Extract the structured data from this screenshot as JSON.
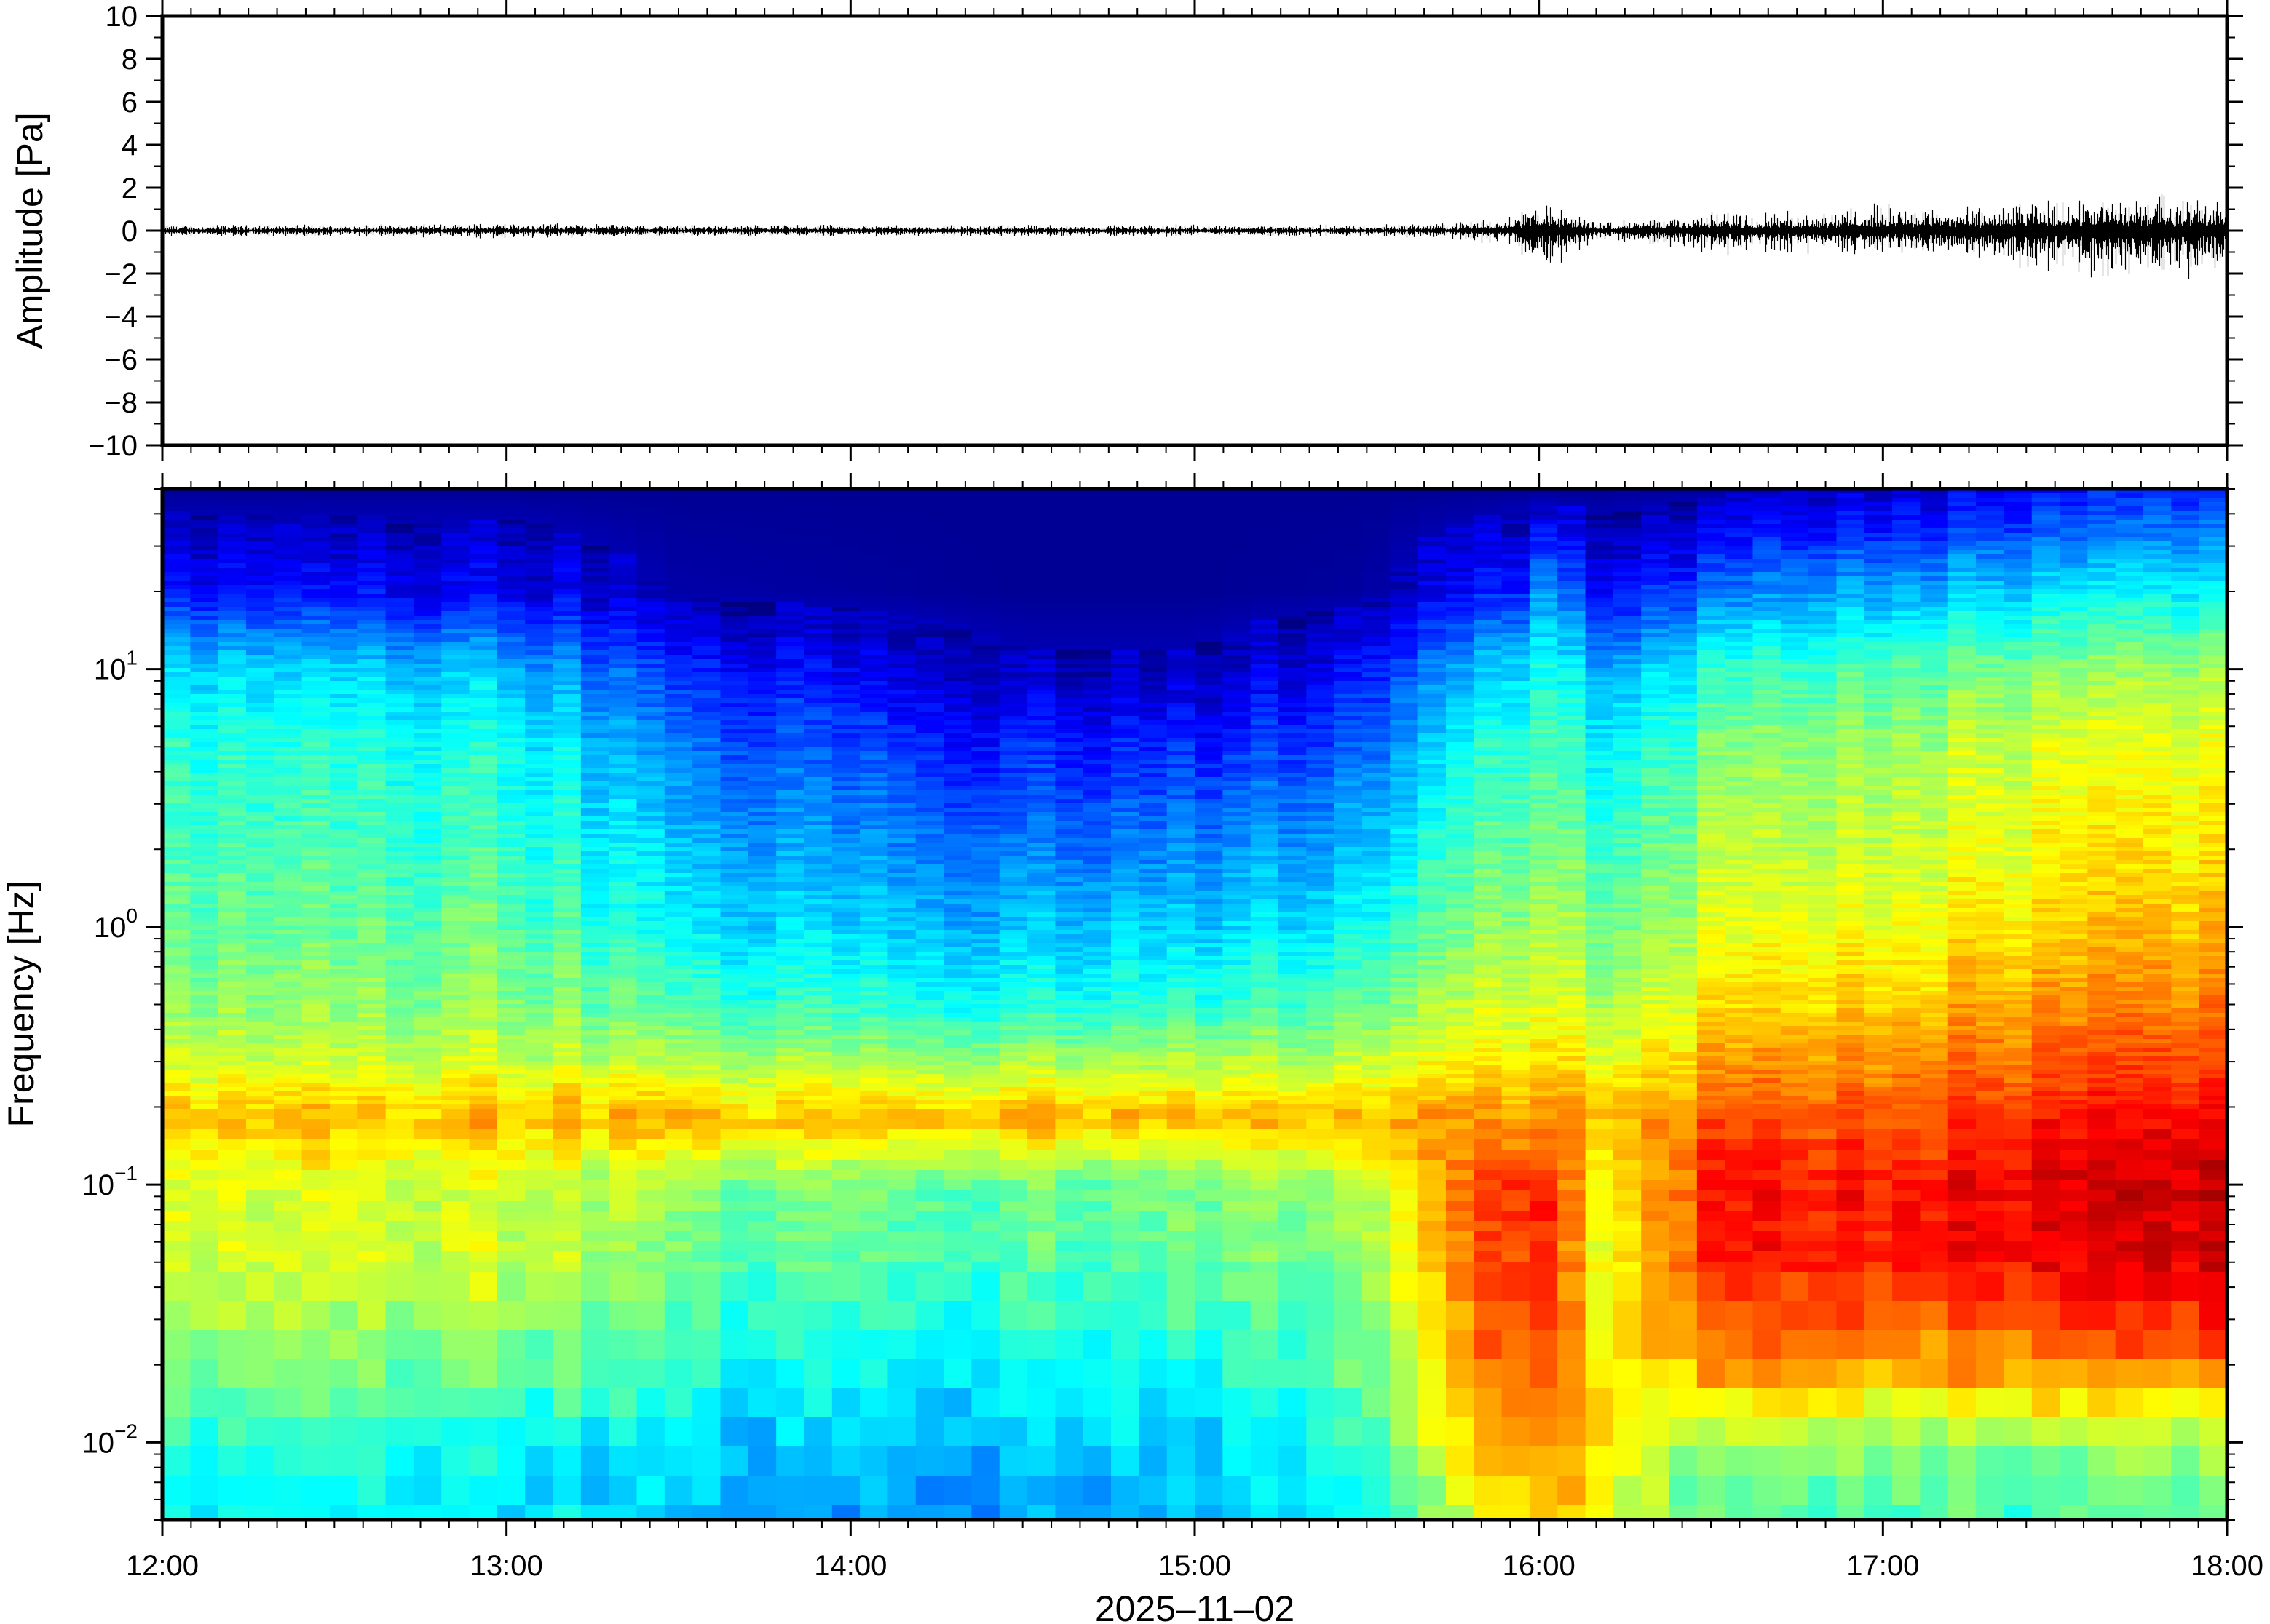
{
  "chart_data": [
    {
      "type": "line",
      "title": "",
      "ylabel": "Amplitude [Pa]",
      "xlabel": "",
      "ylim": [
        -10,
        10
      ],
      "y_ticks": [
        10,
        8,
        6,
        4,
        2,
        0,
        -2,
        -4,
        -6,
        -8,
        -10
      ],
      "y_tick_labels": [
        "10",
        "8",
        "6",
        "4",
        "2",
        "0",
        "−2",
        "−4",
        "−6",
        "−8",
        "−10"
      ],
      "x_ticks": [
        "12:00",
        "13:00",
        "14:00",
        "15:00",
        "16:00",
        "17:00",
        "18:00"
      ],
      "xlim": [
        "12:00",
        "18:00"
      ],
      "grid": false,
      "line_color": "#000000",
      "series": [
        {
          "x": [
            "12:00",
            "12:30",
            "13:00",
            "13:30",
            "14:00",
            "14:30",
            "15:00",
            "15:30",
            "15:45",
            "15:55",
            "16:00",
            "16:10",
            "16:20",
            "16:30",
            "16:45",
            "17:00",
            "17:15",
            "17:30",
            "17:45",
            "18:00"
          ],
          "envelope_max": [
            0.3,
            0.3,
            0.4,
            0.3,
            0.3,
            0.3,
            0.3,
            0.3,
            0.4,
            0.8,
            1.6,
            0.5,
            0.6,
            1.0,
            1.0,
            1.4,
            1.2,
            1.6,
            1.8,
            1.8
          ],
          "envelope_min": [
            -0.3,
            -0.3,
            -0.4,
            -0.3,
            -0.3,
            -0.3,
            -0.3,
            -0.3,
            -0.4,
            -0.8,
            -2.3,
            -0.5,
            -0.7,
            -1.2,
            -1.2,
            -1.4,
            -1.5,
            -2.2,
            -2.5,
            -2.5
          ]
        }
      ]
    },
    {
      "type": "heatmap",
      "title": "",
      "ylabel": "Frequency [Hz]",
      "xlabel": "2025–11–02",
      "y_scale": "log",
      "ylim": [
        0.005,
        50
      ],
      "y_ticks": [
        10,
        1,
        0.1,
        0.01
      ],
      "y_tick_labels": [
        {
          "base": "10",
          "exp": "1"
        },
        {
          "base": "10",
          "exp": "0"
        },
        {
          "base": "10",
          "exp": "−1"
        },
        {
          "base": "10",
          "exp": "−2"
        }
      ],
      "x_ticks": [
        "12:00",
        "13:00",
        "14:00",
        "15:00",
        "16:00",
        "17:00",
        "18:00"
      ],
      "xlim": [
        "12:00",
        "18:00"
      ],
      "colormap": "jet",
      "grid": false,
      "frequency_profile_hz": [
        50,
        20,
        10,
        5,
        2,
        1,
        0.5,
        0.3,
        0.18,
        0.1,
        0.05,
        0.02,
        0.01,
        0.005
      ],
      "power_normalized": [
        {
          "time": "12:00",
          "values": [
            0.02,
            0.15,
            0.35,
            0.42,
            0.45,
            0.48,
            0.52,
            0.58,
            0.7,
            0.6,
            0.58,
            0.52,
            0.42,
            0.4
          ]
        },
        {
          "time": "13:00",
          "values": [
            0.02,
            0.12,
            0.32,
            0.4,
            0.44,
            0.48,
            0.52,
            0.58,
            0.7,
            0.58,
            0.58,
            0.5,
            0.38,
            0.36
          ]
        },
        {
          "time": "13:30",
          "values": [
            0.02,
            0.04,
            0.16,
            0.24,
            0.32,
            0.36,
            0.45,
            0.55,
            0.7,
            0.52,
            0.48,
            0.42,
            0.35,
            0.32
          ]
        },
        {
          "time": "14:00",
          "values": [
            0.02,
            0.03,
            0.12,
            0.2,
            0.28,
            0.34,
            0.42,
            0.55,
            0.7,
            0.5,
            0.46,
            0.4,
            0.32,
            0.28
          ]
        },
        {
          "time": "14:30",
          "values": [
            0.02,
            0.02,
            0.06,
            0.15,
            0.24,
            0.31,
            0.4,
            0.54,
            0.7,
            0.48,
            0.45,
            0.38,
            0.32,
            0.28
          ]
        },
        {
          "time": "15:00",
          "values": [
            0.02,
            0.02,
            0.06,
            0.16,
            0.26,
            0.33,
            0.42,
            0.55,
            0.7,
            0.5,
            0.47,
            0.4,
            0.34,
            0.3
          ]
        },
        {
          "time": "15:30",
          "values": [
            0.02,
            0.03,
            0.14,
            0.22,
            0.32,
            0.38,
            0.47,
            0.57,
            0.7,
            0.55,
            0.52,
            0.48,
            0.42,
            0.38
          ]
        },
        {
          "time": "15:55",
          "values": [
            0.02,
            0.15,
            0.34,
            0.42,
            0.48,
            0.52,
            0.58,
            0.64,
            0.72,
            0.84,
            0.82,
            0.8,
            0.72,
            0.62
          ]
        },
        {
          "time": "16:00",
          "values": [
            0.02,
            0.28,
            0.4,
            0.45,
            0.5,
            0.55,
            0.6,
            0.66,
            0.74,
            0.86,
            0.84,
            0.82,
            0.75,
            0.65
          ]
        },
        {
          "time": "16:10",
          "values": [
            0.02,
            0.14,
            0.3,
            0.38,
            0.44,
            0.5,
            0.55,
            0.62,
            0.7,
            0.62,
            0.62,
            0.66,
            0.68,
            0.62
          ]
        },
        {
          "time": "16:30",
          "values": [
            0.03,
            0.22,
            0.4,
            0.48,
            0.54,
            0.58,
            0.64,
            0.7,
            0.78,
            0.84,
            0.84,
            0.72,
            0.52,
            0.45
          ]
        },
        {
          "time": "17:00",
          "values": [
            0.08,
            0.3,
            0.46,
            0.54,
            0.58,
            0.62,
            0.68,
            0.74,
            0.8,
            0.86,
            0.86,
            0.74,
            0.52,
            0.45
          ]
        },
        {
          "time": "17:30",
          "values": [
            0.12,
            0.34,
            0.5,
            0.58,
            0.62,
            0.66,
            0.72,
            0.78,
            0.84,
            0.9,
            0.88,
            0.74,
            0.5,
            0.44
          ]
        },
        {
          "time": "18:00",
          "values": [
            0.15,
            0.36,
            0.52,
            0.6,
            0.64,
            0.68,
            0.74,
            0.8,
            0.86,
            0.92,
            0.9,
            0.76,
            0.52,
            0.46
          ]
        }
      ]
    }
  ]
}
